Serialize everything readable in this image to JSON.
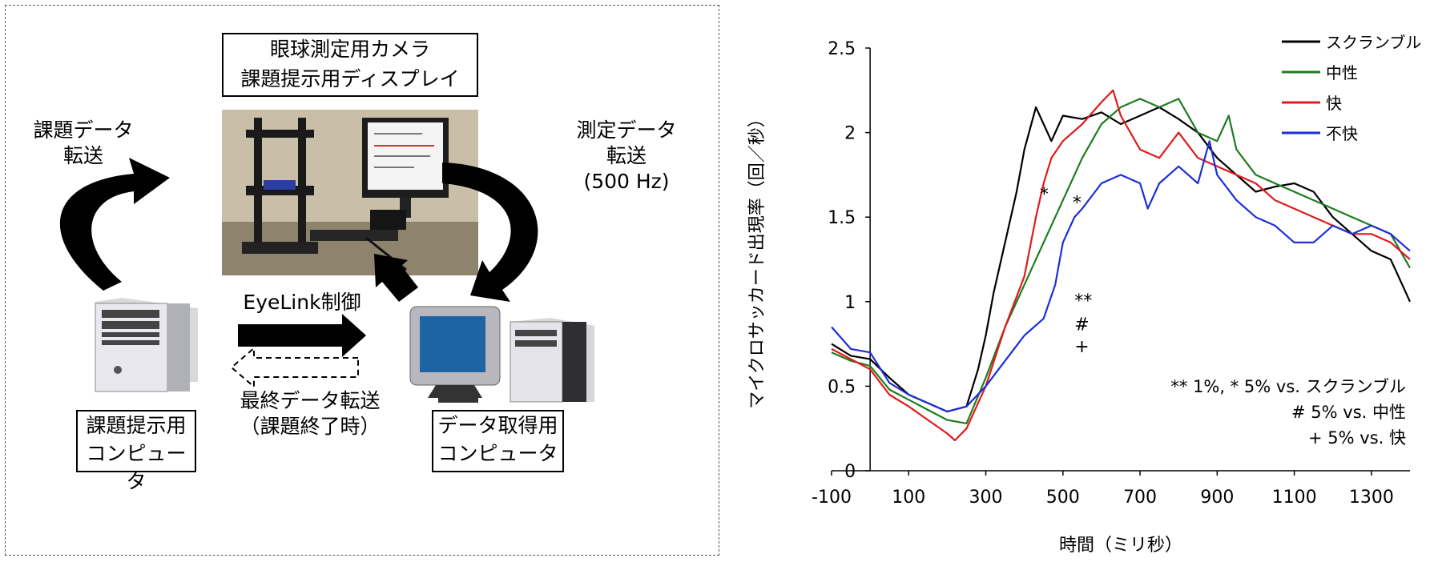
{
  "diagram": {
    "camera_box": [
      "眼球測定用カメラ",
      "課題提示用ディスプレイ"
    ],
    "label_task_transfer": [
      "課題データ",
      "転送"
    ],
    "label_measure_transfer": [
      "測定データ",
      "転送",
      "(500 Hz)"
    ],
    "label_eyelink": "EyeLink制御",
    "label_final_transfer": [
      "最終データ転送",
      "（課題終了時）"
    ],
    "box_task_pc": [
      "課題提示用",
      "コンピュータ"
    ],
    "box_data_pc": [
      "データ取得用",
      "コンピュータ"
    ]
  },
  "chart_data": {
    "type": "line",
    "xlabel": "時間（ミリ秒）",
    "ylabel": "マイクロサッカード出現率（回／秒）",
    "xlim": [
      -100,
      1400
    ],
    "ylim": [
      0,
      2.5
    ],
    "xticks": [
      -100,
      100,
      300,
      500,
      700,
      900,
      1100,
      1300
    ],
    "yticks": [
      0,
      0.5,
      1,
      1.5,
      2,
      2.5
    ],
    "ytick_labels": [
      "0",
      "0.5",
      "1",
      "1.5",
      "2",
      "2.5"
    ],
    "legend_position": "top-right",
    "series": [
      {
        "name": "スクランブル",
        "color": "#000000",
        "x": [
          -100,
          -50,
          0,
          50,
          100,
          150,
          200,
          250,
          280,
          300,
          320,
          350,
          380,
          400,
          430,
          450,
          470,
          500,
          550,
          600,
          650,
          700,
          750,
          800,
          850,
          900,
          950,
          1000,
          1050,
          1100,
          1150,
          1200,
          1250,
          1300,
          1350,
          1380,
          1400
        ],
        "y": [
          0.75,
          0.68,
          0.66,
          0.55,
          0.45,
          0.4,
          0.35,
          0.38,
          0.6,
          0.8,
          1.05,
          1.35,
          1.65,
          1.9,
          2.15,
          2.05,
          1.95,
          2.1,
          2.08,
          2.12,
          2.05,
          2.1,
          2.15,
          2.08,
          2.0,
          1.85,
          1.75,
          1.65,
          1.68,
          1.7,
          1.65,
          1.5,
          1.4,
          1.3,
          1.25,
          1.1,
          1.0
        ]
      },
      {
        "name": "中性",
        "color": "#1e7d1e",
        "x": [
          -100,
          -50,
          0,
          50,
          100,
          150,
          200,
          250,
          300,
          350,
          400,
          450,
          500,
          550,
          600,
          650,
          700,
          750,
          800,
          850,
          900,
          930,
          950,
          1000,
          1050,
          1100,
          1150,
          1200,
          1250,
          1300,
          1350,
          1400
        ],
        "y": [
          0.7,
          0.65,
          0.62,
          0.48,
          0.42,
          0.36,
          0.3,
          0.28,
          0.55,
          0.85,
          1.1,
          1.35,
          1.6,
          1.85,
          2.05,
          2.15,
          2.2,
          2.15,
          2.2,
          2.0,
          1.95,
          2.1,
          1.9,
          1.75,
          1.7,
          1.65,
          1.6,
          1.55,
          1.5,
          1.45,
          1.4,
          1.2
        ]
      },
      {
        "name": "快",
        "color": "#e01b1b",
        "x": [
          -100,
          -50,
          0,
          50,
          100,
          150,
          200,
          220,
          250,
          300,
          350,
          400,
          430,
          450,
          470,
          500,
          550,
          600,
          630,
          650,
          700,
          750,
          800,
          850,
          900,
          950,
          1000,
          1050,
          1100,
          1150,
          1200,
          1250,
          1300,
          1350,
          1400
        ],
        "y": [
          0.72,
          0.66,
          0.6,
          0.45,
          0.38,
          0.3,
          0.22,
          0.18,
          0.25,
          0.5,
          0.85,
          1.15,
          1.5,
          1.7,
          1.85,
          1.95,
          2.05,
          2.18,
          2.25,
          2.1,
          1.9,
          1.85,
          2.0,
          1.85,
          1.8,
          1.75,
          1.7,
          1.6,
          1.55,
          1.5,
          1.45,
          1.4,
          1.4,
          1.35,
          1.25
        ]
      },
      {
        "name": "不快",
        "color": "#1c2fd6",
        "x": [
          -100,
          -50,
          0,
          50,
          100,
          150,
          200,
          250,
          300,
          350,
          400,
          450,
          480,
          500,
          530,
          550,
          600,
          650,
          700,
          720,
          750,
          800,
          850,
          880,
          900,
          950,
          1000,
          1050,
          1100,
          1150,
          1200,
          1250,
          1300,
          1350,
          1400
        ],
        "y": [
          0.85,
          0.72,
          0.7,
          0.52,
          0.45,
          0.4,
          0.35,
          0.38,
          0.5,
          0.65,
          0.8,
          0.9,
          1.1,
          1.35,
          1.5,
          1.55,
          1.7,
          1.75,
          1.7,
          1.55,
          1.7,
          1.8,
          1.7,
          1.95,
          1.75,
          1.6,
          1.5,
          1.45,
          1.35,
          1.35,
          1.45,
          1.4,
          1.45,
          1.4,
          1.3
        ]
      }
    ],
    "annotations": [
      {
        "text": "*",
        "x": 440,
        "y": 1.6
      },
      {
        "text": "*",
        "x": 525,
        "y": 1.55
      },
      {
        "text": "**",
        "x": 530,
        "y": 0.97
      },
      {
        "text": "#",
        "x": 530,
        "y": 0.83
      },
      {
        "text": "+",
        "x": 530,
        "y": 0.7
      }
    ],
    "footnotes": [
      "** 1%, * 5% vs. スクランブル",
      "# 5% vs. 中性",
      "+ 5% vs. 快"
    ]
  }
}
